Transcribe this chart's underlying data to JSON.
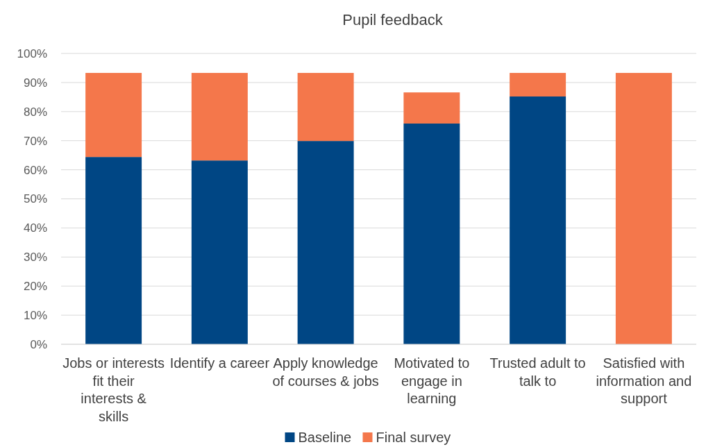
{
  "chart_data": {
    "type": "bar",
    "title": "Pupil feedback",
    "stacked": true,
    "categories": [
      "Jobs or interests fit their interests & skills",
      "Identify a career",
      "Apply knowledge of courses & jobs",
      "Motivated to engage in learning",
      "Trusted adult to talk to",
      "Satisfied with information and support"
    ],
    "series": [
      {
        "name": "Baseline",
        "color": "#004684",
        "values": [
          64.4,
          63.2,
          69.9,
          75.9,
          85.2,
          0
        ]
      },
      {
        "name": "Final survey",
        "color": "#f4774b",
        "values": [
          28.9,
          30.1,
          23.4,
          10.7,
          8.1,
          93.3
        ]
      }
    ],
    "ylim": [
      0,
      100
    ],
    "yticks": [
      {
        "value": 0,
        "label": "0%"
      },
      {
        "value": 10,
        "label": "10%"
      },
      {
        "value": 20,
        "label": "20%"
      },
      {
        "value": 30,
        "label": "30%"
      },
      {
        "value": 40,
        "label": "40%"
      },
      {
        "value": 50,
        "label": "50%"
      },
      {
        "value": 60,
        "label": "60%"
      },
      {
        "value": 70,
        "label": "70%"
      },
      {
        "value": 80,
        "label": "80%"
      },
      {
        "value": 90,
        "label": "90%"
      },
      {
        "value": 100,
        "label": "100%"
      }
    ],
    "grid": "y",
    "legend": "bottom"
  }
}
